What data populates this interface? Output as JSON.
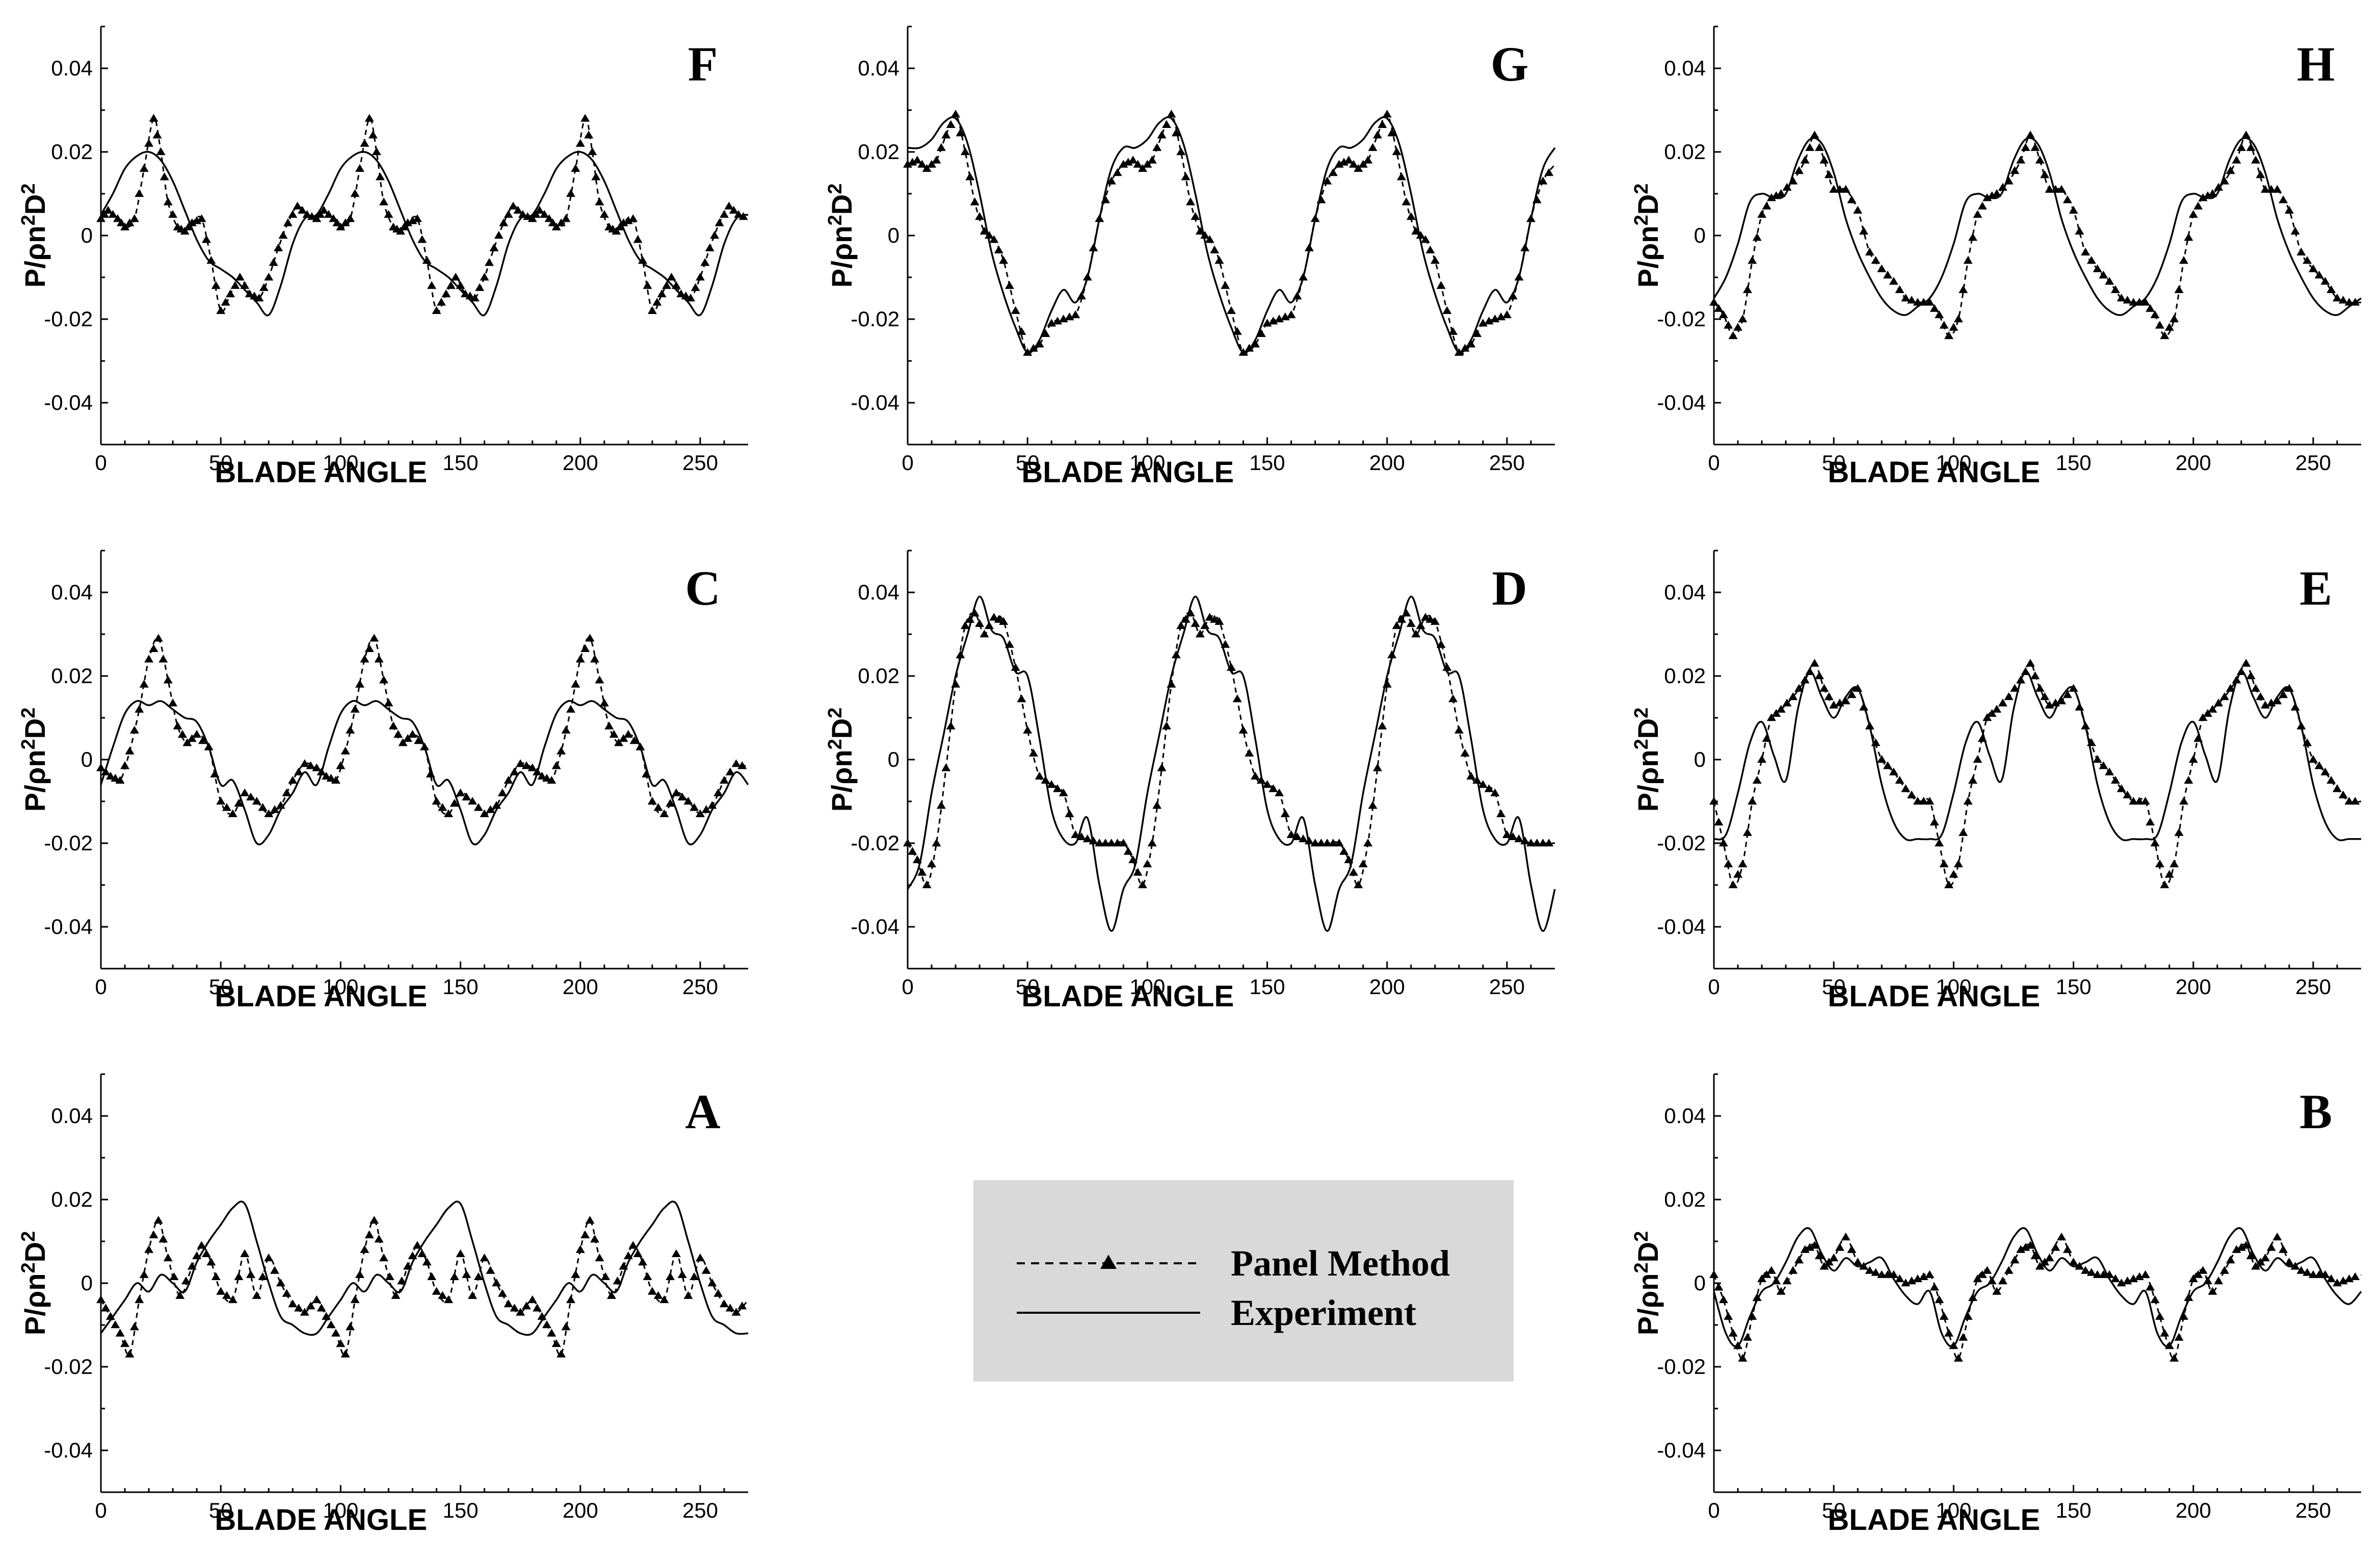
{
  "figure_name": "pressure fluctuation comparison",
  "legend": {
    "panel_method": "Panel Method",
    "experiment": "Experiment"
  },
  "common": {
    "xlabel": "BLADE ANGLE",
    "ylabel_main": "P/ρn",
    "ylabel_sup1": "2",
    "ylabel_mid": "D",
    "ylabel_sup2": "2",
    "xlim": [
      0,
      270
    ],
    "ylim": [
      -0.05,
      0.05
    ],
    "xticks": [
      0,
      50,
      100,
      150,
      200,
      250
    ],
    "xtick_labels": [
      "0",
      "50",
      "100",
      "150",
      "200",
      "250"
    ],
    "yticks": [
      -0.04,
      -0.02,
      0,
      0.02,
      0.04
    ],
    "ytick_labels": [
      "-0.04",
      "-0.02",
      "0",
      "0.02",
      "0.04"
    ]
  },
  "chart_data": [
    {
      "type": "line",
      "panel": "F",
      "title": "F",
      "xlabel": "BLADE ANGLE",
      "ylabel": "P/ρn²D²",
      "xlim": [
        0,
        270
      ],
      "ylim": [
        -0.05,
        0.05
      ],
      "series": [
        {
          "name": "Panel Method",
          "x": [
            0,
            3,
            7,
            10,
            14,
            18,
            22,
            25,
            28,
            32,
            35,
            38,
            42,
            46,
            50,
            54,
            58,
            62,
            66,
            70,
            74,
            78,
            82,
            86,
            90
          ],
          "values": [
            0.004,
            0.006,
            0.004,
            0.002,
            0.004,
            0.016,
            0.028,
            0.02,
            0.008,
            0.002,
            0.001,
            0.003,
            0.004,
            -0.006,
            -0.018,
            -0.014,
            -0.01,
            -0.014,
            -0.015,
            -0.01,
            -0.003,
            0.003,
            0.007,
            0.005,
            0.004
          ]
        },
        {
          "name": "Experiment",
          "x": [
            0,
            5,
            10,
            15,
            20,
            25,
            30,
            35,
            40,
            45,
            50,
            55,
            60,
            65,
            70,
            75,
            80,
            85,
            90
          ],
          "values": [
            0.005,
            0.01,
            0.016,
            0.019,
            0.02,
            0.018,
            0.013,
            0.006,
            -0.001,
            -0.006,
            -0.008,
            -0.01,
            -0.013,
            -0.016,
            -0.019,
            -0.012,
            -0.002,
            0.004,
            0.005
          ]
        }
      ]
    },
    {
      "type": "line",
      "panel": "G",
      "title": "G",
      "xlabel": "BLADE ANGLE",
      "ylabel": "P/ρn²D²",
      "xlim": [
        0,
        270
      ],
      "ylim": [
        -0.05,
        0.05
      ],
      "series": [
        {
          "name": "Panel Method",
          "x": [
            0,
            4,
            8,
            12,
            16,
            20,
            24,
            28,
            32,
            36,
            40,
            45,
            50,
            55,
            60,
            65,
            70,
            75,
            80,
            85,
            90
          ],
          "values": [
            0.017,
            0.018,
            0.016,
            0.018,
            0.024,
            0.029,
            0.02,
            0.008,
            0.001,
            -0.001,
            -0.006,
            -0.018,
            -0.028,
            -0.026,
            -0.021,
            -0.02,
            -0.019,
            -0.01,
            0.004,
            0.013,
            0.017
          ]
        },
        {
          "name": "Experiment",
          "x": [
            0,
            5,
            10,
            15,
            20,
            25,
            30,
            35,
            40,
            45,
            50,
            55,
            60,
            65,
            70,
            75,
            80,
            85,
            90
          ],
          "values": [
            0.021,
            0.021,
            0.023,
            0.027,
            0.028,
            0.022,
            0.01,
            -0.004,
            -0.014,
            -0.022,
            -0.028,
            -0.025,
            -0.018,
            -0.013,
            -0.016,
            -0.01,
            0.004,
            0.016,
            0.021
          ]
        }
      ]
    },
    {
      "type": "line",
      "panel": "H",
      "title": "H",
      "xlabel": "BLADE ANGLE",
      "ylabel": "P/ρn²D²",
      "xlim": [
        0,
        270
      ],
      "ylim": [
        -0.05,
        0.05
      ],
      "series": [
        {
          "name": "Panel Method",
          "x": [
            0,
            4,
            8,
            12,
            16,
            20,
            24,
            28,
            33,
            38,
            42,
            46,
            50,
            55,
            60,
            65,
            70,
            75,
            80,
            85,
            90
          ],
          "values": [
            -0.016,
            -0.019,
            -0.024,
            -0.02,
            -0.006,
            0.005,
            0.009,
            0.01,
            0.013,
            0.018,
            0.024,
            0.018,
            0.011,
            0.011,
            0.006,
            -0.004,
            -0.008,
            -0.011,
            -0.015,
            -0.016,
            -0.016
          ]
        },
        {
          "name": "Experiment",
          "x": [
            0,
            5,
            10,
            15,
            20,
            25,
            30,
            35,
            40,
            45,
            50,
            55,
            60,
            65,
            70,
            75,
            80,
            85,
            90
          ],
          "values": [
            -0.015,
            -0.01,
            -0.002,
            0.008,
            0.01,
            0.009,
            0.01,
            0.018,
            0.023,
            0.022,
            0.015,
            0.004,
            -0.004,
            -0.01,
            -0.015,
            -0.018,
            -0.019,
            -0.017,
            -0.015
          ]
        }
      ]
    },
    {
      "type": "line",
      "panel": "C",
      "title": "C",
      "xlabel": "BLADE ANGLE",
      "ylabel": "P/ρn²D²",
      "xlim": [
        0,
        270
      ],
      "ylim": [
        -0.05,
        0.05
      ],
      "series": [
        {
          "name": "Panel Method",
          "x": [
            0,
            4,
            8,
            12,
            16,
            20,
            24,
            28,
            32,
            36,
            40,
            45,
            50,
            55,
            60,
            65,
            70,
            75,
            80,
            85,
            90
          ],
          "values": [
            -0.002,
            -0.004,
            -0.005,
            0.002,
            0.012,
            0.024,
            0.029,
            0.019,
            0.008,
            0.004,
            0.006,
            0.003,
            -0.01,
            -0.013,
            -0.008,
            -0.01,
            -0.013,
            -0.011,
            -0.005,
            -0.001,
            -0.002
          ]
        },
        {
          "name": "Experiment",
          "x": [
            0,
            5,
            10,
            15,
            20,
            25,
            30,
            35,
            40,
            45,
            50,
            55,
            60,
            65,
            70,
            75,
            80,
            85,
            90
          ],
          "values": [
            -0.006,
            0.003,
            0.011,
            0.014,
            0.013,
            0.014,
            0.012,
            0.01,
            0.009,
            0.003,
            -0.006,
            -0.005,
            -0.012,
            -0.02,
            -0.018,
            -0.012,
            -0.008,
            -0.003,
            -0.006
          ]
        }
      ]
    },
    {
      "type": "line",
      "panel": "D",
      "title": "D",
      "xlabel": "BLADE ANGLE",
      "ylabel": "P/ρn²D²",
      "xlim": [
        0,
        270
      ],
      "ylim": [
        -0.05,
        0.05
      ],
      "series": [
        {
          "name": "Panel Method",
          "x": [
            0,
            4,
            8,
            12,
            16,
            20,
            24,
            28,
            32,
            36,
            40,
            45,
            50,
            55,
            60,
            65,
            70,
            75,
            80,
            85,
            90
          ],
          "values": [
            -0.02,
            -0.024,
            -0.03,
            -0.02,
            -0.002,
            0.018,
            0.032,
            0.035,
            0.03,
            0.034,
            0.033,
            0.022,
            0.007,
            -0.004,
            -0.006,
            -0.008,
            -0.018,
            -0.019,
            -0.02,
            -0.02,
            -0.02
          ]
        },
        {
          "name": "Experiment",
          "x": [
            0,
            5,
            10,
            15,
            20,
            25,
            30,
            35,
            40,
            45,
            50,
            55,
            60,
            65,
            70,
            75,
            80,
            85,
            90
          ],
          "values": [
            -0.031,
            -0.025,
            -0.008,
            0.006,
            0.02,
            0.03,
            0.039,
            0.031,
            0.029,
            0.021,
            0.02,
            0.005,
            -0.012,
            -0.019,
            -0.02,
            -0.014,
            -0.03,
            -0.041,
            -0.031
          ]
        }
      ]
    },
    {
      "type": "line",
      "panel": "E",
      "title": "E",
      "xlabel": "BLADE ANGLE",
      "ylabel": "P/ρn²D²",
      "xlim": [
        0,
        270
      ],
      "ylim": [
        -0.05,
        0.05
      ],
      "series": [
        {
          "name": "Panel Method",
          "x": [
            0,
            4,
            8,
            12,
            16,
            20,
            24,
            28,
            33,
            38,
            42,
            46,
            50,
            55,
            60,
            65,
            70,
            75,
            80,
            85,
            90
          ],
          "values": [
            -0.01,
            -0.02,
            -0.03,
            -0.025,
            -0.01,
            0.0,
            0.01,
            0.012,
            0.015,
            0.019,
            0.023,
            0.017,
            0.013,
            0.014,
            0.017,
            0.008,
            0.0,
            -0.003,
            -0.007,
            -0.01,
            -0.01
          ]
        },
        {
          "name": "Experiment",
          "x": [
            0,
            5,
            10,
            15,
            20,
            25,
            30,
            35,
            40,
            45,
            50,
            55,
            60,
            65,
            70,
            75,
            80,
            85,
            90
          ],
          "values": [
            -0.019,
            -0.018,
            -0.008,
            0.004,
            0.009,
            0.001,
            -0.005,
            0.012,
            0.021,
            0.015,
            0.01,
            0.015,
            0.017,
            0.008,
            -0.006,
            -0.015,
            -0.019,
            -0.019,
            -0.019
          ]
        }
      ]
    },
    {
      "type": "line",
      "panel": "A",
      "title": "A",
      "xlabel": "BLADE ANGLE",
      "ylabel": "P/ρn²D²",
      "xlim": [
        0,
        270
      ],
      "ylim": [
        -0.05,
        0.05
      ],
      "series": [
        {
          "name": "Panel Method",
          "x": [
            0,
            4,
            8,
            12,
            16,
            20,
            24,
            28,
            33,
            38,
            42,
            46,
            50,
            55,
            60,
            65,
            70,
            75,
            80,
            85,
            90
          ],
          "values": [
            -0.004,
            -0.008,
            -0.012,
            -0.017,
            -0.004,
            0.008,
            0.015,
            0.006,
            -0.003,
            0.004,
            0.009,
            0.005,
            -0.002,
            -0.004,
            0.007,
            -0.003,
            0.006,
            0.0,
            -0.005,
            -0.007,
            -0.004
          ]
        },
        {
          "name": "Experiment",
          "x": [
            0,
            5,
            10,
            15,
            20,
            25,
            30,
            35,
            40,
            45,
            50,
            55,
            60,
            65,
            70,
            75,
            80,
            85,
            90
          ],
          "values": [
            -0.012,
            -0.008,
            -0.004,
            0.0,
            -0.002,
            0.002,
            0.0,
            -0.002,
            0.005,
            0.01,
            0.014,
            0.018,
            0.019,
            0.01,
            0.0,
            -0.008,
            -0.01,
            -0.012,
            -0.012
          ]
        }
      ]
    },
    {
      "type": "line",
      "panel": "B",
      "title": "B",
      "xlabel": "BLADE ANGLE",
      "ylabel": "P/ρn²D²",
      "xlim": [
        0,
        270
      ],
      "ylim": [
        -0.05,
        0.05
      ],
      "series": [
        {
          "name": "Panel Method",
          "x": [
            0,
            4,
            8,
            12,
            16,
            20,
            24,
            28,
            33,
            38,
            42,
            46,
            50,
            55,
            60,
            65,
            70,
            75,
            80,
            85,
            90
          ],
          "values": [
            0.002,
            -0.004,
            -0.012,
            -0.018,
            -0.008,
            0.001,
            0.003,
            -0.002,
            0.003,
            0.008,
            0.009,
            0.004,
            0.006,
            0.011,
            0.005,
            0.003,
            0.002,
            0.002,
            0.0,
            0.001,
            0.002
          ]
        },
        {
          "name": "Experiment",
          "x": [
            0,
            5,
            10,
            15,
            20,
            25,
            30,
            35,
            40,
            45,
            50,
            55,
            60,
            65,
            70,
            75,
            80,
            85,
            90
          ],
          "values": [
            -0.002,
            -0.012,
            -0.015,
            -0.008,
            -0.002,
            0.0,
            0.005,
            0.011,
            0.013,
            0.007,
            0.003,
            0.006,
            0.004,
            0.005,
            0.006,
            0.001,
            -0.003,
            -0.005,
            -0.002
          ]
        }
      ]
    }
  ]
}
